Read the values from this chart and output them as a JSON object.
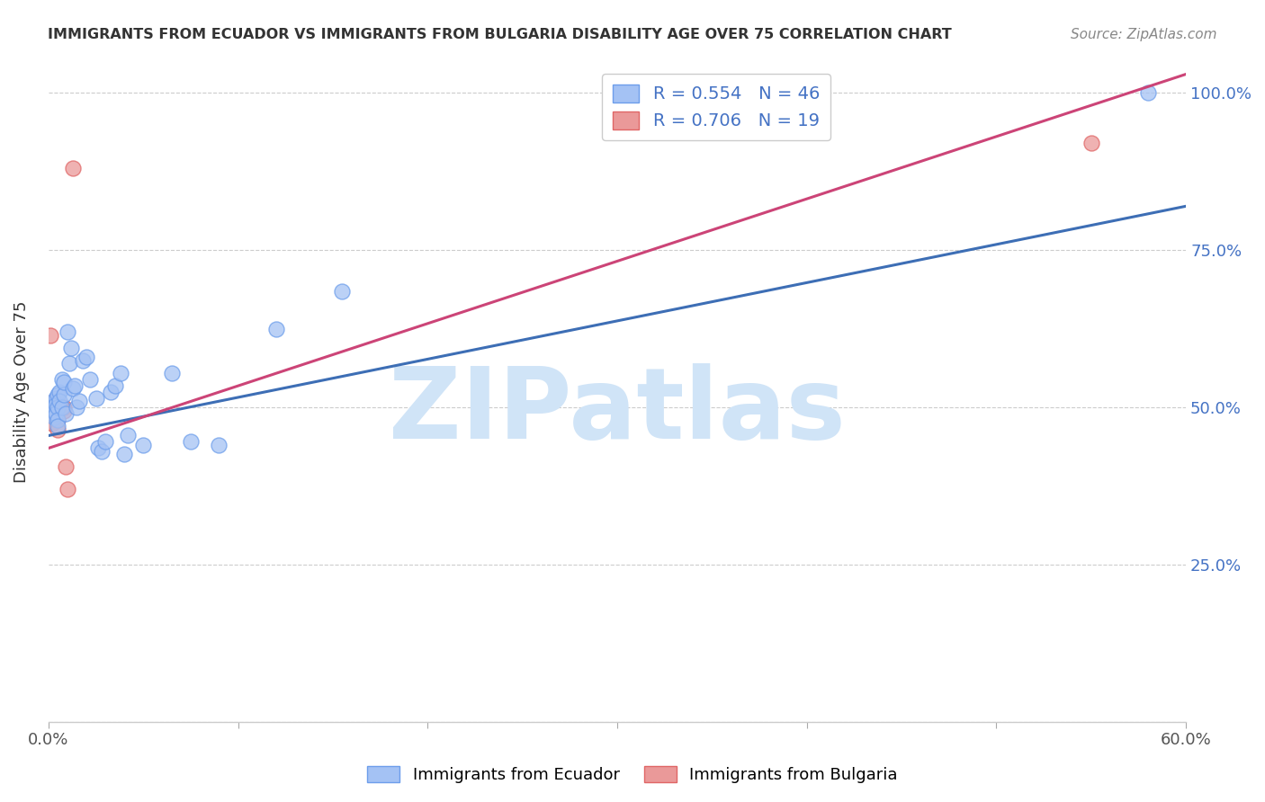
{
  "title": "IMMIGRANTS FROM ECUADOR VS IMMIGRANTS FROM BULGARIA DISABILITY AGE OVER 75 CORRELATION CHART",
  "source": "Source: ZipAtlas.com",
  "ylabel": "Disability Age Over 75",
  "xlim": [
    0.0,
    0.6
  ],
  "ylim": [
    0.0,
    1.05
  ],
  "xtick_pos": [
    0.0,
    0.1,
    0.2,
    0.3,
    0.4,
    0.5,
    0.6
  ],
  "xticklabels": [
    "0.0%",
    "",
    "",
    "",
    "",
    "",
    "60.0%"
  ],
  "ytick_pos": [
    0.0,
    0.25,
    0.5,
    0.75,
    1.0
  ],
  "right_ytick_labels": [
    "",
    "25.0%",
    "50.0%",
    "75.0%",
    "100.0%"
  ],
  "ecuador_color": "#a4c2f4",
  "ecuador_edge_color": "#6d9eeb",
  "bulgaria_color": "#ea9999",
  "bulgaria_edge_color": "#e06666",
  "ecuador_R": 0.554,
  "ecuador_N": 46,
  "bulgaria_R": 0.706,
  "bulgaria_N": 19,
  "ecuador_line_color": "#3d6eb5",
  "bulgaria_line_color": "#cc4477",
  "watermark_text": "ZIPatlas",
  "watermark_color": "#d0e4f7",
  "ecuador_x": [
    0.001,
    0.002,
    0.002,
    0.003,
    0.003,
    0.003,
    0.004,
    0.004,
    0.004,
    0.005,
    0.005,
    0.005,
    0.005,
    0.006,
    0.006,
    0.007,
    0.007,
    0.008,
    0.008,
    0.009,
    0.01,
    0.011,
    0.012,
    0.013,
    0.014,
    0.015,
    0.016,
    0.018,
    0.02,
    0.022,
    0.025,
    0.026,
    0.028,
    0.03,
    0.033,
    0.035,
    0.038,
    0.04,
    0.042,
    0.05,
    0.065,
    0.075,
    0.09,
    0.12,
    0.155,
    0.58
  ],
  "ecuador_y": [
    0.5,
    0.505,
    0.49,
    0.51,
    0.495,
    0.485,
    0.515,
    0.505,
    0.49,
    0.52,
    0.5,
    0.48,
    0.47,
    0.525,
    0.51,
    0.545,
    0.5,
    0.52,
    0.54,
    0.49,
    0.62,
    0.57,
    0.595,
    0.53,
    0.535,
    0.5,
    0.51,
    0.575,
    0.58,
    0.545,
    0.515,
    0.435,
    0.43,
    0.445,
    0.525,
    0.535,
    0.555,
    0.425,
    0.455,
    0.44,
    0.555,
    0.445,
    0.44,
    0.625,
    0.685,
    1.0
  ],
  "bulgaria_x": [
    0.001,
    0.001,
    0.002,
    0.002,
    0.003,
    0.003,
    0.003,
    0.004,
    0.004,
    0.005,
    0.005,
    0.006,
    0.007,
    0.008,
    0.008,
    0.009,
    0.01,
    0.013,
    0.55
  ],
  "bulgaria_y": [
    0.615,
    0.49,
    0.5,
    0.475,
    0.51,
    0.5,
    0.49,
    0.505,
    0.49,
    0.48,
    0.465,
    0.505,
    0.5,
    0.5,
    0.495,
    0.405,
    0.37,
    0.88,
    0.92
  ],
  "ecuador_line_x": [
    0.0,
    0.6
  ],
  "ecuador_line_y": [
    0.455,
    0.82
  ],
  "bulgaria_line_x": [
    0.0,
    0.6
  ],
  "bulgaria_line_y": [
    0.435,
    1.03
  ]
}
